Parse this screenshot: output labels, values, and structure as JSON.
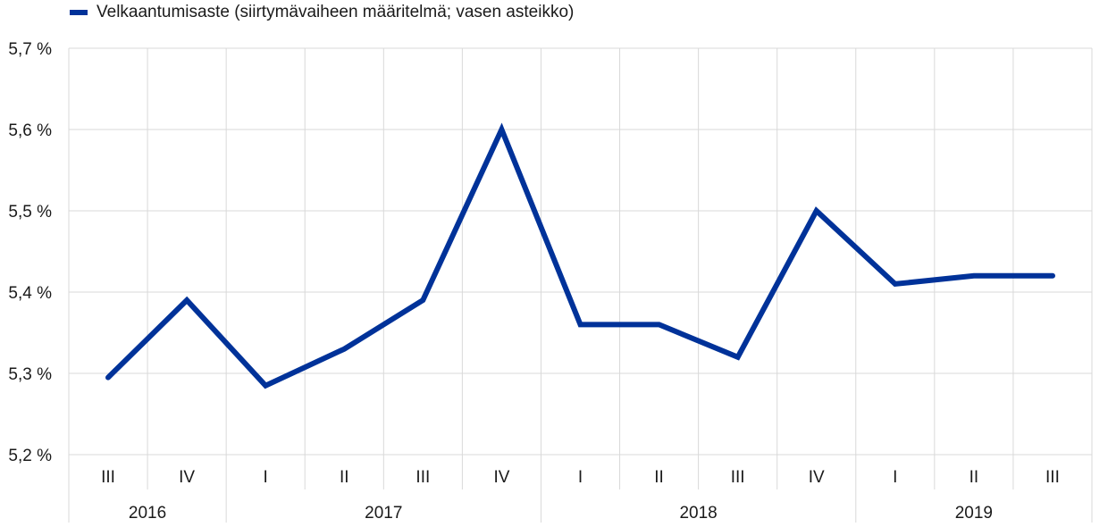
{
  "chart_data": {
    "type": "line",
    "title": "",
    "xlabel": "",
    "ylabel": "",
    "ylim": [
      5.2,
      5.7
    ],
    "yticks": [
      5.2,
      5.3,
      5.4,
      5.5,
      5.6,
      5.7
    ],
    "ytick_labels": [
      "5,2 %",
      "5,3 %",
      "5,4 %",
      "5,5 %",
      "5,6 %",
      "5,7 %"
    ],
    "grid": true,
    "legend_position": "top-left",
    "categories": [
      "III",
      "IV",
      "I",
      "II",
      "III",
      "IV",
      "I",
      "II",
      "III",
      "IV",
      "I",
      "II",
      "III"
    ],
    "year_groups": [
      {
        "label": "2016",
        "count": 2
      },
      {
        "label": "2017",
        "count": 4
      },
      {
        "label": "2018",
        "count": 4
      },
      {
        "label": "2019",
        "count": 3
      }
    ],
    "series": [
      {
        "name": "Velkaantumisaste (siirtymävaiheen määritelmä; vasen asteikko)",
        "color": "#003299",
        "values": [
          5.295,
          5.39,
          5.285,
          5.33,
          5.39,
          5.6,
          5.36,
          5.36,
          5.32,
          5.5,
          5.41,
          5.42,
          5.42
        ]
      }
    ]
  }
}
